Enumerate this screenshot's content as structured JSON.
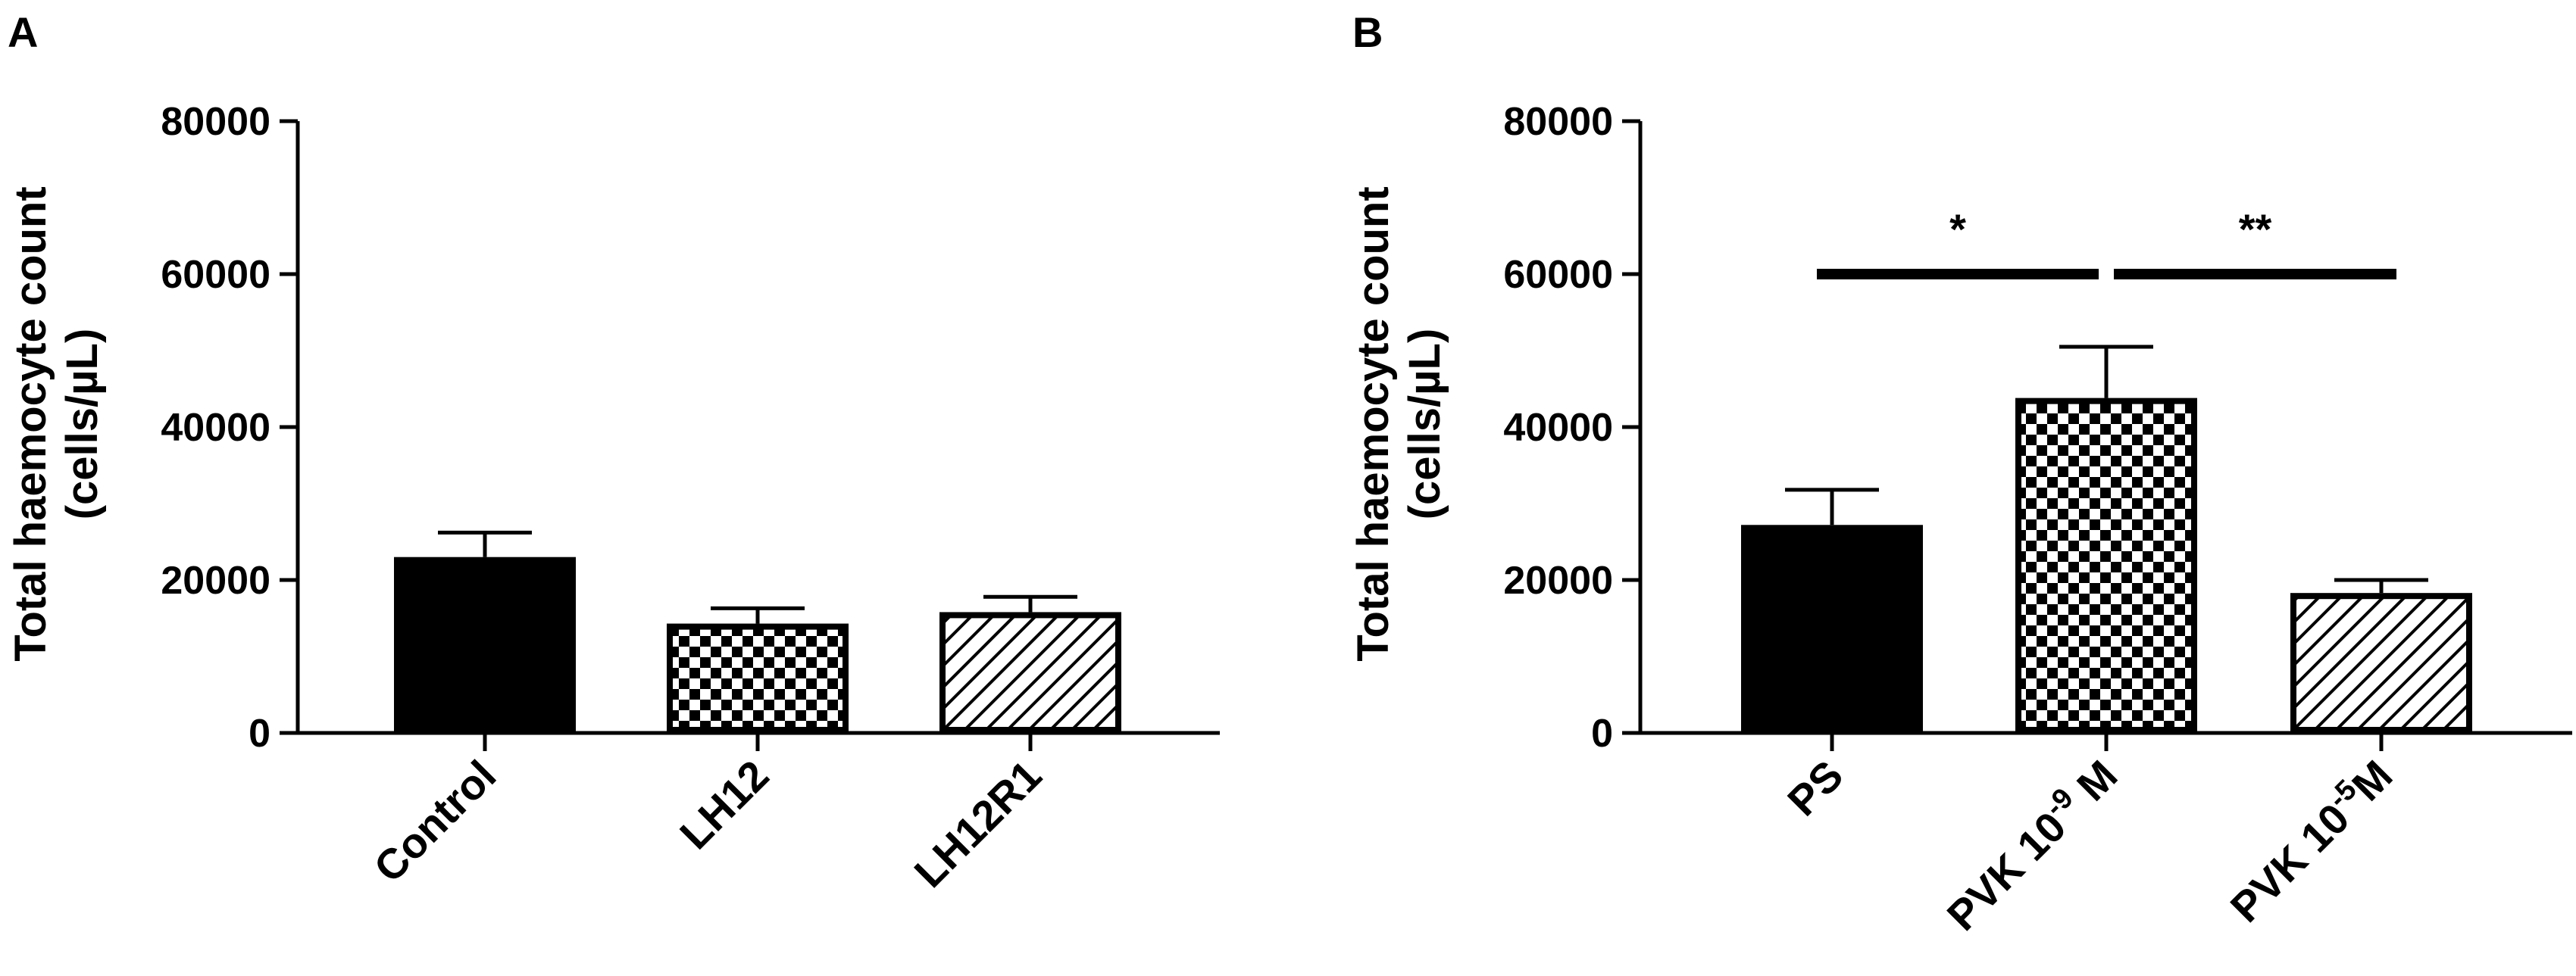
{
  "chart_data": [
    {
      "panel": "A",
      "type": "bar",
      "ylabel_line1": "Total haemocyte count",
      "ylabel_line2": "(cells/µL)",
      "ylim": [
        0,
        80000
      ],
      "yticks": [
        "0",
        "20000",
        "40000",
        "60000",
        "80000"
      ],
      "categories": [
        "Control",
        "LH12",
        "LH12R1"
      ],
      "values": [
        23000,
        14300,
        15800
      ],
      "errors": [
        3200,
        2000,
        2000
      ],
      "fills": [
        "solid",
        "checker",
        "hatch"
      ],
      "significance": []
    },
    {
      "panel": "B",
      "type": "bar",
      "ylabel_line1": "Total haemocyte count",
      "ylabel_line2": "(cells/µL)",
      "ylim": [
        0,
        80000
      ],
      "yticks": [
        "0",
        "20000",
        "40000",
        "60000",
        "80000"
      ],
      "categories": [
        "PS",
        "PVK 10-9 M",
        "PVK 10-5M"
      ],
      "category_parts": [
        {
          "base": "PS",
          "sup": "",
          "tail": ""
        },
        {
          "base": "PVK 10",
          "sup": "-9",
          "tail": " M"
        },
        {
          "base": "PVK 10",
          "sup": "-5",
          "tail": "M"
        }
      ],
      "values": [
        27200,
        43800,
        18300
      ],
      "errors": [
        4600,
        6700,
        1700
      ],
      "fills": [
        "solid",
        "checker",
        "hatch"
      ],
      "significance": [
        {
          "from": 0,
          "to": 1,
          "label": "*",
          "y": 60000
        },
        {
          "from": 1,
          "to": 2,
          "label": "**",
          "y": 60000
        }
      ]
    }
  ],
  "colors": {
    "ink": "#000000",
    "background": "#ffffff"
  }
}
